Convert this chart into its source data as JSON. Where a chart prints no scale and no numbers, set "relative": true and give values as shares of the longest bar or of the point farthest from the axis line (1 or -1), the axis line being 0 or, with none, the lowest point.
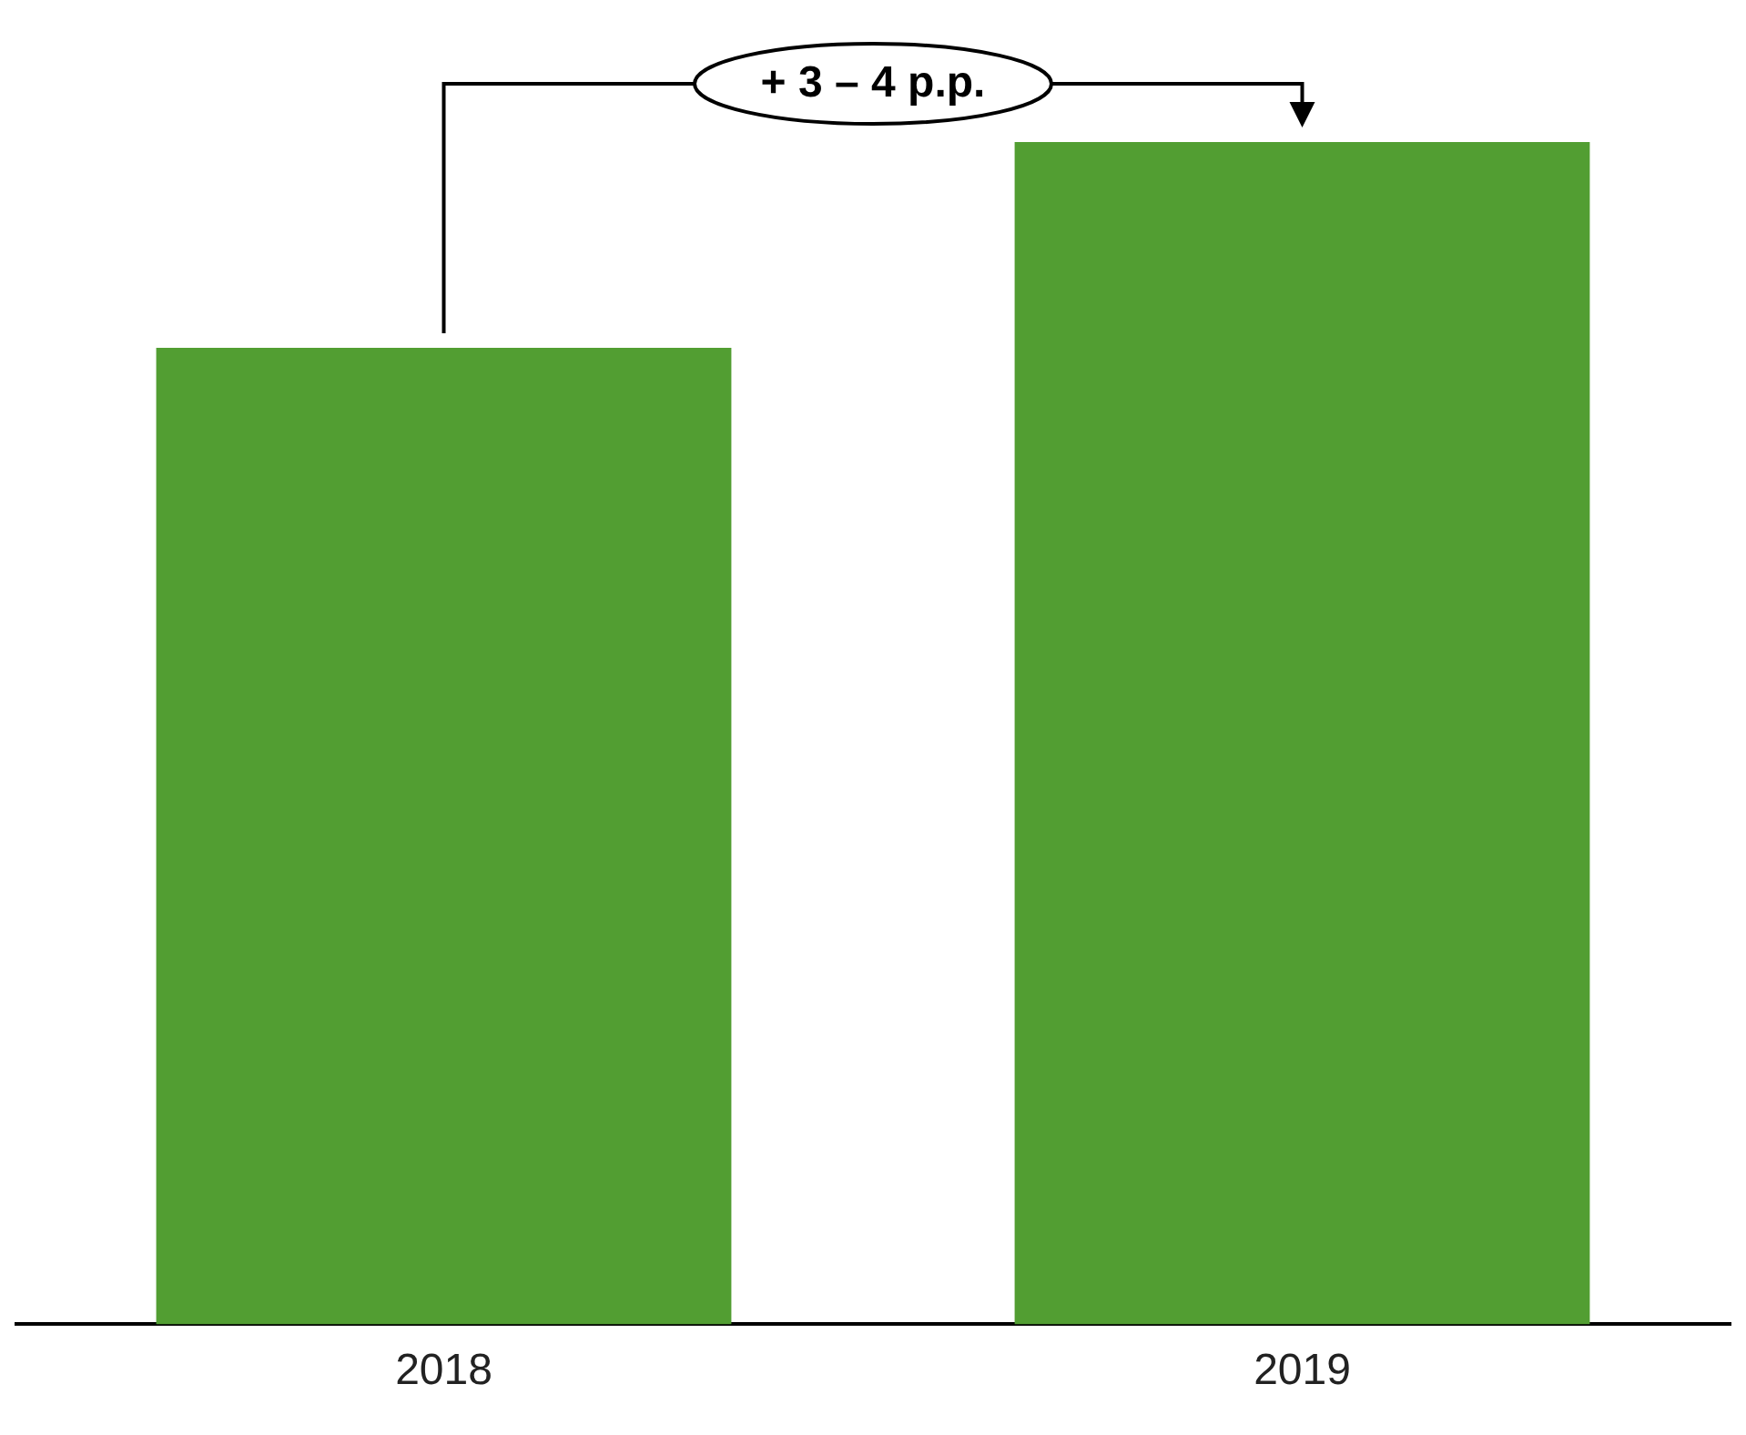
{
  "chart_data": {
    "type": "bar",
    "relative": true,
    "categories": [
      "2018",
      "2019"
    ],
    "values": [
      0.826,
      1
    ],
    "color": "#529e32",
    "annotations": [
      "+ 3 – 4 p.p."
    ]
  }
}
